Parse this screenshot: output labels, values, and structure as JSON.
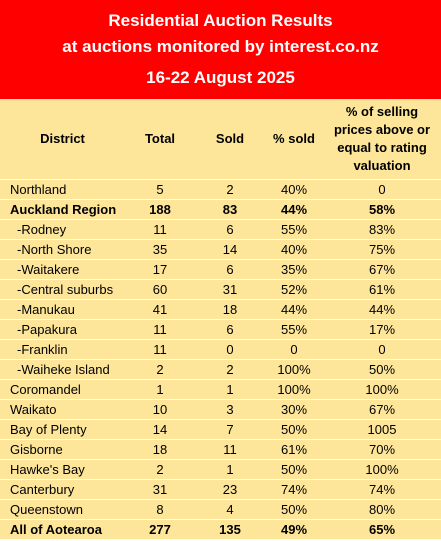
{
  "header": {
    "title": "Residential Auction Results",
    "subtitle": "at auctions monitored by interest.co.nz",
    "date_range": "16-22 August 2025"
  },
  "colors": {
    "header_bg": "#ff0000",
    "header_text": "#ffffff",
    "table_bg": "#fde59a"
  },
  "table": {
    "columns": [
      "District",
      "Total",
      "Sold",
      "% sold",
      "% of selling prices above or equal to rating valuation"
    ],
    "rows": [
      {
        "district": "Northland",
        "total": "5",
        "sold": "2",
        "pct_sold": "40%",
        "pct_above_rv": "0",
        "bold": false,
        "sub": false
      },
      {
        "district": "Auckland Region",
        "total": "188",
        "sold": "83",
        "pct_sold": "44%",
        "pct_above_rv": "58%",
        "bold": true,
        "sub": false
      },
      {
        "district": "-Rodney",
        "total": "11",
        "sold": "6",
        "pct_sold": "55%",
        "pct_above_rv": "83%",
        "bold": false,
        "sub": true
      },
      {
        "district": "-North Shore",
        "total": "35",
        "sold": "14",
        "pct_sold": "40%",
        "pct_above_rv": "75%",
        "bold": false,
        "sub": true
      },
      {
        "district": "-Waitakere",
        "total": "17",
        "sold": "6",
        "pct_sold": "35%",
        "pct_above_rv": "67%",
        "bold": false,
        "sub": true
      },
      {
        "district": "-Central suburbs",
        "total": "60",
        "sold": "31",
        "pct_sold": "52%",
        "pct_above_rv": "61%",
        "bold": false,
        "sub": true
      },
      {
        "district": "-Manukau",
        "total": "41",
        "sold": "18",
        "pct_sold": "44%",
        "pct_above_rv": "44%",
        "bold": false,
        "sub": true
      },
      {
        "district": "-Papakura",
        "total": "11",
        "sold": "6",
        "pct_sold": "55%",
        "pct_above_rv": "17%",
        "bold": false,
        "sub": true
      },
      {
        "district": "-Franklin",
        "total": "11",
        "sold": "0",
        "pct_sold": "0",
        "pct_above_rv": "0",
        "bold": false,
        "sub": true
      },
      {
        "district": "-Waiheke Island",
        "total": "2",
        "sold": "2",
        "pct_sold": "100%",
        "pct_above_rv": "50%",
        "bold": false,
        "sub": true
      },
      {
        "district": "Coromandel",
        "total": "1",
        "sold": "1",
        "pct_sold": "100%",
        "pct_above_rv": "100%",
        "bold": false,
        "sub": false
      },
      {
        "district": "Waikato",
        "total": "10",
        "sold": "3",
        "pct_sold": "30%",
        "pct_above_rv": "67%",
        "bold": false,
        "sub": false
      },
      {
        "district": "Bay of Plenty",
        "total": "14",
        "sold": "7",
        "pct_sold": "50%",
        "pct_above_rv": "1005",
        "bold": false,
        "sub": false
      },
      {
        "district": "Gisborne",
        "total": "18",
        "sold": "11",
        "pct_sold": "61%",
        "pct_above_rv": "70%",
        "bold": false,
        "sub": false
      },
      {
        "district": "Hawke's Bay",
        "total": "2",
        "sold": "1",
        "pct_sold": "50%",
        "pct_above_rv": "100%",
        "bold": false,
        "sub": false
      },
      {
        "district": "Canterbury",
        "total": "31",
        "sold": "23",
        "pct_sold": "74%",
        "pct_above_rv": "74%",
        "bold": false,
        "sub": false
      },
      {
        "district": "Queenstown",
        "total": "8",
        "sold": "4",
        "pct_sold": "50%",
        "pct_above_rv": "80%",
        "bold": false,
        "sub": false
      },
      {
        "district": "All of Aotearoa",
        "total": "277",
        "sold": "135",
        "pct_sold": "49%",
        "pct_above_rv": "65%",
        "bold": true,
        "sub": false
      }
    ]
  }
}
